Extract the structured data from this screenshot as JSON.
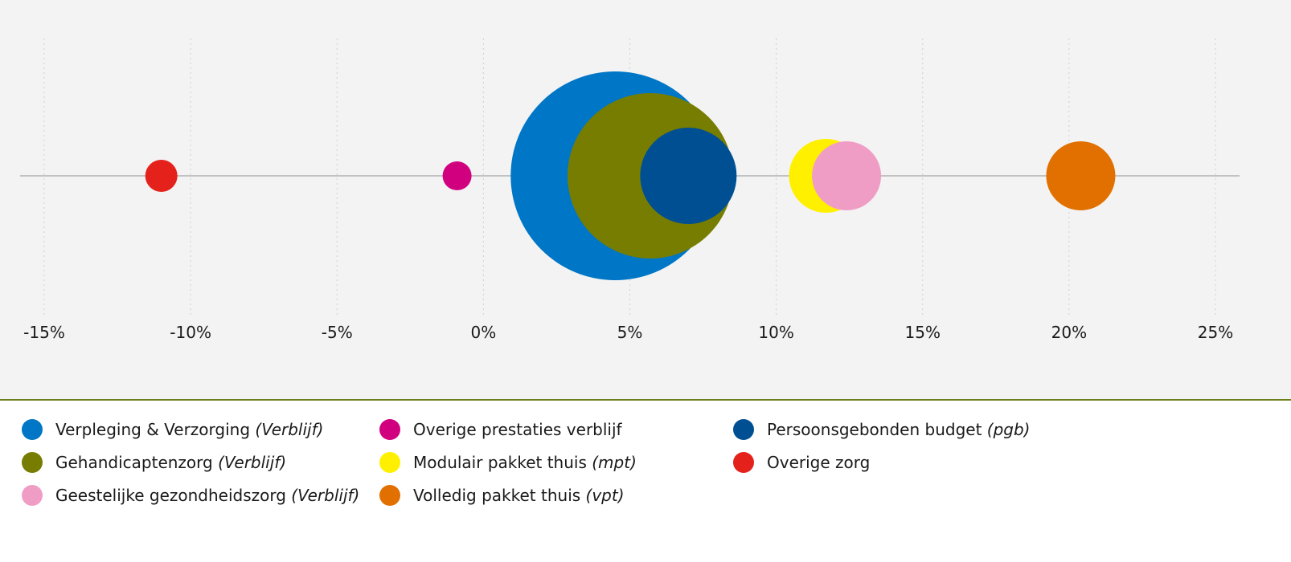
{
  "chart_data": {
    "type": "scatter",
    "title": "",
    "xlabel": "",
    "ylabel": "",
    "xlim": [
      -15,
      25
    ],
    "x_ticks": [
      -15,
      -10,
      -5,
      0,
      5,
      10,
      15,
      20,
      25
    ],
    "x_tick_labels": [
      "-15%",
      "-10%",
      "-5%",
      "0%",
      "5%",
      "10%",
      "15%",
      "20%",
      "25%"
    ],
    "grid": "vertical dotted",
    "legend_position": "bottom",
    "series": [
      {
        "name": "Verpleging & Verzorging",
        "qualifier": "Verblijf",
        "x": 4.5,
        "size": 130,
        "color": "#0076c6"
      },
      {
        "name": "Gehandicaptenzorg",
        "qualifier": "Verblijf",
        "x": 5.7,
        "size": 103,
        "color": "#777d00"
      },
      {
        "name": "Persoonsgebonden budget",
        "qualifier": "pgb",
        "x": 7.0,
        "size": 60,
        "color": "#004f93"
      },
      {
        "name": "Modulair pakket thuis",
        "qualifier": "mpt",
        "x": 11.7,
        "size": 46,
        "color": "#fff000"
      },
      {
        "name": "Geestelijke gezondheidszorg",
        "qualifier": "Verblijf",
        "x": 12.4,
        "size": 43,
        "color": "#f09dc6"
      },
      {
        "name": "Volledig pakket thuis",
        "qualifier": "vpt",
        "x": 20.4,
        "size": 43,
        "color": "#e17000"
      },
      {
        "name": "Overige prestaties verblijf",
        "qualifier": "",
        "x": -0.9,
        "size": 18,
        "color": "#d1007f"
      },
      {
        "name": "Overige zorg",
        "qualifier": "",
        "x": -11.0,
        "size": 20,
        "color": "#e4221b"
      }
    ]
  },
  "legend": {
    "columns": [
      [
        {
          "label": "Verpleging & Verzorging",
          "qualifier": "(Verblijf)",
          "color": "#0076c6"
        },
        {
          "label": "Gehandicaptenzorg",
          "qualifier": "(Verblijf)",
          "color": "#777d00"
        },
        {
          "label": "Geestelijke gezondheidszorg",
          "qualifier": "(Verblijf)",
          "color": "#f09dc6"
        }
      ],
      [
        {
          "label": "Overige prestaties verblijf",
          "qualifier": "",
          "color": "#d1007f"
        },
        {
          "label": "Modulair pakket thuis",
          "qualifier": "(mpt)",
          "color": "#fff000"
        },
        {
          "label": "Volledig pakket thuis",
          "qualifier": "(vpt)",
          "color": "#e17000"
        }
      ],
      [
        {
          "label": "Persoonsgebonden budget",
          "qualifier": "(pgb)",
          "color": "#004f93"
        },
        {
          "label": "Overige zorg",
          "qualifier": "",
          "color": "#e4221b"
        }
      ]
    ]
  },
  "colors": {
    "chart_background": "#f3f3f3",
    "separator": "#6b7f1e",
    "axis_line": "#c2c2c2",
    "grid": "#cfcfcf"
  }
}
